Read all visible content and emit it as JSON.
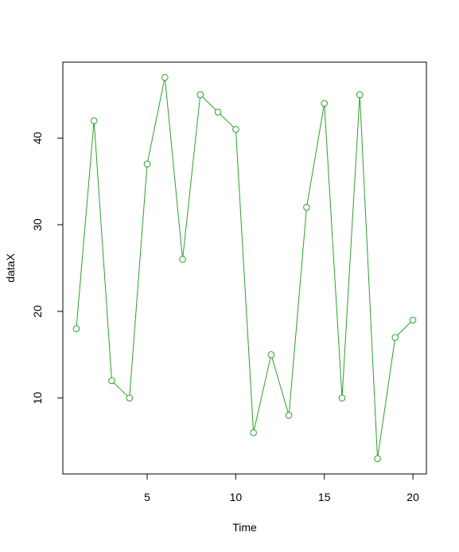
{
  "chart_data": {
    "type": "line",
    "x_label": "Time",
    "y_label": "dataX",
    "x": [
      1,
      2,
      3,
      4,
      5,
      6,
      7,
      8,
      9,
      10,
      11,
      12,
      13,
      14,
      15,
      16,
      17,
      18,
      19,
      20
    ],
    "values": [
      18,
      42,
      12,
      10,
      37,
      47,
      26,
      45,
      43,
      41,
      6,
      15,
      8,
      32,
      44,
      10,
      45,
      3,
      17,
      19
    ],
    "color": "#2ca02c",
    "xlim": [
      0.24,
      20.76
    ],
    "xticks": [
      5,
      10,
      15,
      20
    ],
    "ylim": [
      1.24,
      48.76
    ],
    "yticks": [
      10,
      20,
      30,
      40
    ]
  }
}
